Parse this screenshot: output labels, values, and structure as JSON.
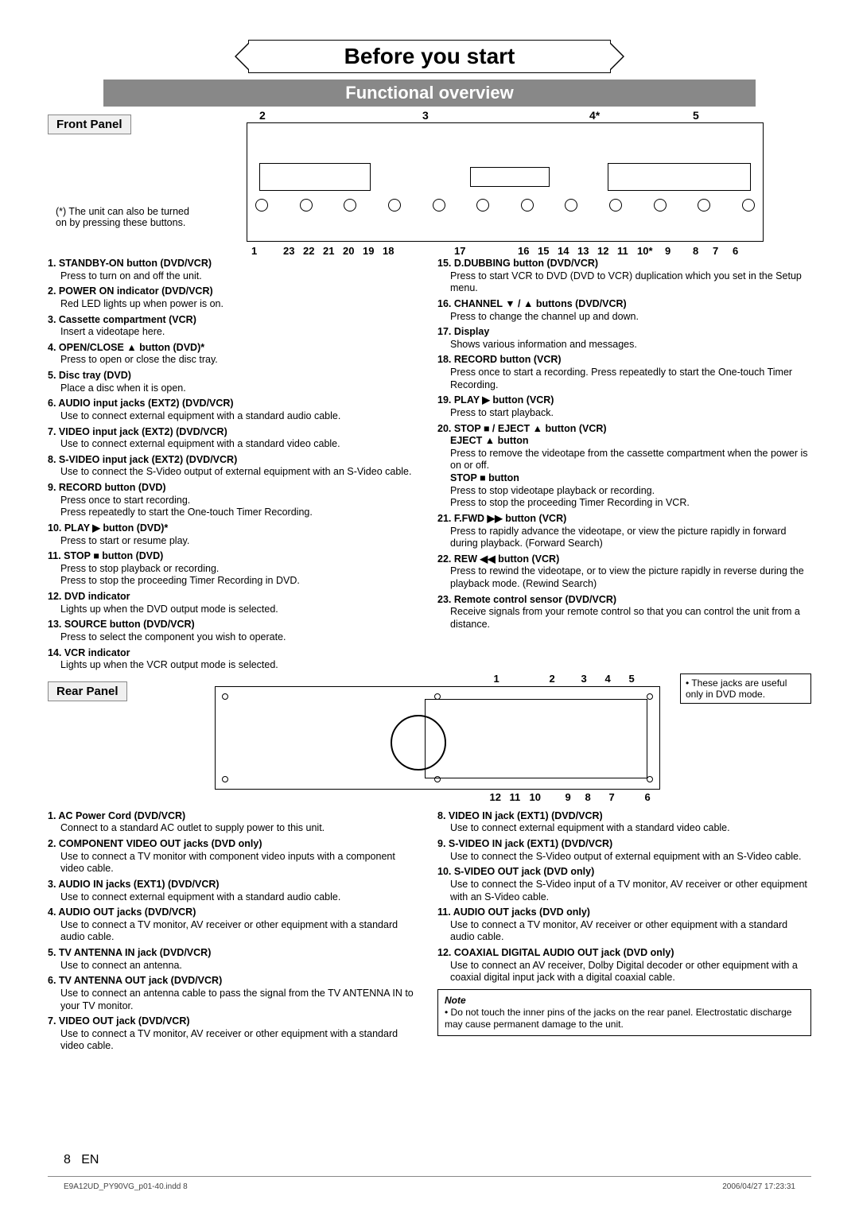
{
  "title": "Before you start",
  "subtitle": "Functional overview",
  "front_panel_label": "Front Panel",
  "rear_panel_label": "Rear Panel",
  "asterisk_note": "(*) The unit can also be turned on by pressing these buttons.",
  "front_top_nums": [
    "2",
    "3",
    "4*",
    "5"
  ],
  "front_bot_nums_left": [
    "1",
    "23",
    "22",
    "21",
    "20",
    "19",
    "18"
  ],
  "front_bot_nums_mid": [
    "17"
  ],
  "front_bot_nums_right": [
    "16",
    "15",
    "14",
    "13",
    "12",
    "11",
    "10*",
    "9",
    "8",
    "7",
    "6"
  ],
  "front_items_left": [
    {
      "n": "1.",
      "t": "STANDBY-ON button (DVD/VCR)",
      "d": "Press to turn on and off the unit."
    },
    {
      "n": "2.",
      "t": "POWER ON indicator (DVD/VCR)",
      "d": "Red LED lights up when power is on."
    },
    {
      "n": "3.",
      "t": "Cassette compartment (VCR)",
      "d": "Insert a videotape here."
    },
    {
      "n": "4.",
      "t": "OPEN/CLOSE ▲ button (DVD)*",
      "d": "Press to open or close the disc tray."
    },
    {
      "n": "5.",
      "t": "Disc tray (DVD)",
      "d": "Place a disc when it is open."
    },
    {
      "n": "6.",
      "t": "AUDIO input jacks (EXT2) (DVD/VCR)",
      "d": "Use to connect external equipment with a standard audio cable."
    },
    {
      "n": "7.",
      "t": "VIDEO input jack (EXT2) (DVD/VCR)",
      "d": "Use to connect external equipment with a standard video cable."
    },
    {
      "n": "8.",
      "t": "S-VIDEO input jack (EXT2) (DVD/VCR)",
      "d": "Use to connect the S-Video output of external equipment with an S-Video cable."
    },
    {
      "n": "9.",
      "t": "RECORD button (DVD)",
      "d": "Press once to start recording.\nPress repeatedly to start the One-touch Timer Recording."
    },
    {
      "n": "10.",
      "t": "PLAY ▶ button (DVD)*",
      "d": "Press to start or resume play."
    },
    {
      "n": "11.",
      "t": "STOP ■ button (DVD)",
      "d": "Press to stop playback or recording.\nPress to stop the proceeding Timer Recording in DVD."
    },
    {
      "n": "12.",
      "t": "DVD indicator",
      "d": "Lights up when the DVD output mode is selected."
    },
    {
      "n": "13.",
      "t": "SOURCE button (DVD/VCR)",
      "d": "Press to select the component you wish to operate."
    },
    {
      "n": "14.",
      "t": "VCR indicator",
      "d": "Lights up when the VCR output mode is selected."
    }
  ],
  "front_items_right": [
    {
      "n": "15.",
      "t": "D.DUBBING button (DVD/VCR)",
      "d": "Press to start VCR to DVD (DVD to VCR) duplication which you set in the Setup menu."
    },
    {
      "n": "16.",
      "t": "CHANNEL ▼ / ▲ buttons (DVD/VCR)",
      "d": "Press to change the channel up and down."
    },
    {
      "n": "17.",
      "t": "Display",
      "d": "Shows various information and messages."
    },
    {
      "n": "18.",
      "t": "RECORD button (VCR)",
      "d": "Press once to start a recording. Press repeatedly to start the One-touch Timer Recording."
    },
    {
      "n": "19.",
      "t": "PLAY ▶ button (VCR)",
      "d": "Press to start playback."
    },
    {
      "n": "20.",
      "t": "STOP ■ / EJECT ▲ button (VCR)\nEJECT ▲ button",
      "d": "Press to remove the videotape from the cassette compartment when the power is on or off.\nSTOP ■ button\nPress to stop videotape playback or recording.\nPress to stop the proceeding Timer Recording in VCR."
    },
    {
      "n": "21.",
      "t": "F.FWD ▶▶ button (VCR)",
      "d": "Press to rapidly advance the videotape, or view the picture rapidly in forward during playback. (Forward Search)"
    },
    {
      "n": "22.",
      "t": "REW ◀◀ button (VCR)",
      "d": "Press to rewind the videotape, or to view the picture rapidly in reverse during the playback mode. (Rewind Search)"
    },
    {
      "n": "23.",
      "t": "Remote control sensor (DVD/VCR)",
      "d": "Receive signals from your remote control so that you can control the unit from a distance."
    }
  ],
  "rear_note": "• These jacks are useful only in DVD mode.",
  "rear_top_nums": [
    "1",
    "2",
    "3",
    "4",
    "5"
  ],
  "rear_bot_nums": [
    "12",
    "11",
    "10",
    "9",
    "8",
    "7",
    "6"
  ],
  "rear_items_left": [
    {
      "n": "1.",
      "t": "AC Power Cord (DVD/VCR)",
      "d": "Connect to a standard AC outlet to supply power to this unit."
    },
    {
      "n": "2.",
      "t": "COMPONENT VIDEO OUT jacks (DVD only)",
      "d": "Use to connect a TV monitor with component video inputs with a component video cable."
    },
    {
      "n": "3.",
      "t": "AUDIO IN jacks (EXT1) (DVD/VCR)",
      "d": "Use to connect external equipment with a standard audio cable."
    },
    {
      "n": "4.",
      "t": "AUDIO OUT jacks (DVD/VCR)",
      "d": "Use to connect a TV monitor, AV receiver or other equipment with a standard audio cable."
    },
    {
      "n": "5.",
      "t": "TV ANTENNA IN jack (DVD/VCR)",
      "d": "Use to connect an antenna."
    },
    {
      "n": "6.",
      "t": "TV ANTENNA OUT jack (DVD/VCR)",
      "d": "Use to connect an antenna cable to pass the signal from the TV ANTENNA IN to your TV monitor."
    },
    {
      "n": "7.",
      "t": "VIDEO OUT jack (DVD/VCR)",
      "d": "Use to connect a TV monitor, AV receiver or other equipment with a standard video cable."
    }
  ],
  "rear_items_right": [
    {
      "n": "8.",
      "t": "VIDEO IN jack (EXT1) (DVD/VCR)",
      "d": "Use to connect external equipment with a standard video cable."
    },
    {
      "n": "9.",
      "t": "S-VIDEO IN jack (EXT1) (DVD/VCR)",
      "d": "Use to connect the S-Video output of external equipment with an S-Video cable."
    },
    {
      "n": "10.",
      "t": "S-VIDEO OUT jack (DVD only)",
      "d": "Use to connect the S-Video input of a TV monitor, AV receiver or other equipment with an S-Video cable."
    },
    {
      "n": "11.",
      "t": "AUDIO OUT jacks (DVD only)",
      "d": "Use to connect a TV monitor, AV receiver or other equipment with a standard audio cable."
    },
    {
      "n": "12.",
      "t": "COAXIAL DIGITAL AUDIO OUT jack (DVD only)",
      "d": "Use to connect an AV receiver, Dolby Digital decoder or other equipment with a coaxial digital input jack with a digital coaxial cable."
    }
  ],
  "note_title": "Note",
  "note_text": "• Do not touch the inner pins of the jacks on the rear panel. Electrostatic discharge may cause permanent damage to the unit.",
  "page_num": "8",
  "page_lang": "EN",
  "footer_file": "E9A12UD_PY90VG_p01-40.indd   8",
  "footer_date": "2006/04/27   17:23:31"
}
